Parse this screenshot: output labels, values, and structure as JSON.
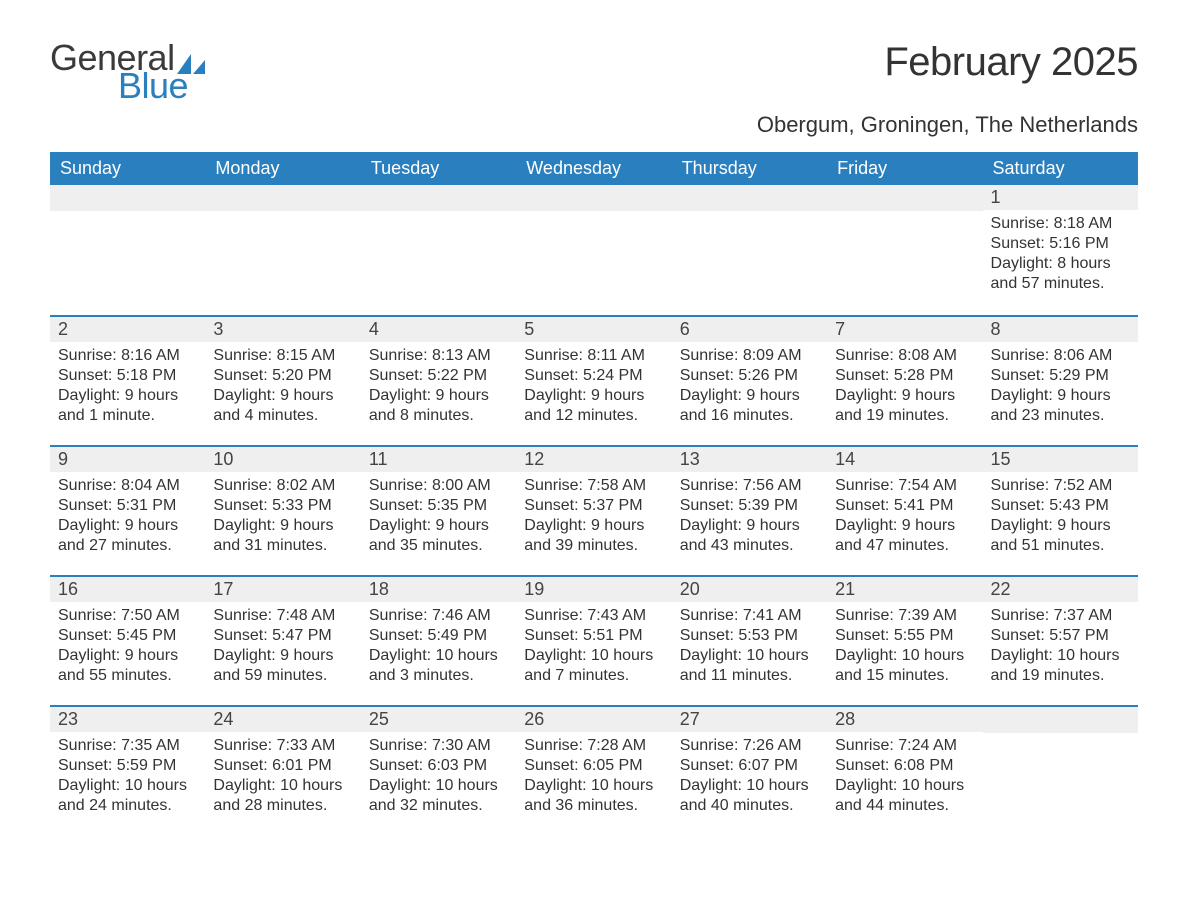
{
  "logo": {
    "word1": "General",
    "word2": "Blue"
  },
  "title": "February 2025",
  "subtitle": "Obergum, Groningen, The Netherlands",
  "colors": {
    "header_bg": "#2a7fbf",
    "header_text": "#ffffff",
    "daynum_bg": "#efefef",
    "body_text": "#333333",
    "logo_gray": "#3a3a3a",
    "logo_blue": "#2a7fbf",
    "page_bg": "#ffffff",
    "week_border": "#2a7fbf"
  },
  "typography": {
    "title_fontsize": 40,
    "subtitle_fontsize": 22,
    "dow_fontsize": 18,
    "daynum_fontsize": 18,
    "body_fontsize": 16,
    "logo_fontsize": 36
  },
  "dow": [
    "Sunday",
    "Monday",
    "Tuesday",
    "Wednesday",
    "Thursday",
    "Friday",
    "Saturday"
  ],
  "weeks": [
    [
      {
        "day": null
      },
      {
        "day": null
      },
      {
        "day": null
      },
      {
        "day": null
      },
      {
        "day": null
      },
      {
        "day": null
      },
      {
        "day": 1,
        "sunrise": "Sunrise: 8:18 AM",
        "sunset": "Sunset: 5:16 PM",
        "daylight1": "Daylight: 8 hours",
        "daylight2": "and 57 minutes."
      }
    ],
    [
      {
        "day": 2,
        "sunrise": "Sunrise: 8:16 AM",
        "sunset": "Sunset: 5:18 PM",
        "daylight1": "Daylight: 9 hours",
        "daylight2": "and 1 minute."
      },
      {
        "day": 3,
        "sunrise": "Sunrise: 8:15 AM",
        "sunset": "Sunset: 5:20 PM",
        "daylight1": "Daylight: 9 hours",
        "daylight2": "and 4 minutes."
      },
      {
        "day": 4,
        "sunrise": "Sunrise: 8:13 AM",
        "sunset": "Sunset: 5:22 PM",
        "daylight1": "Daylight: 9 hours",
        "daylight2": "and 8 minutes."
      },
      {
        "day": 5,
        "sunrise": "Sunrise: 8:11 AM",
        "sunset": "Sunset: 5:24 PM",
        "daylight1": "Daylight: 9 hours",
        "daylight2": "and 12 minutes."
      },
      {
        "day": 6,
        "sunrise": "Sunrise: 8:09 AM",
        "sunset": "Sunset: 5:26 PM",
        "daylight1": "Daylight: 9 hours",
        "daylight2": "and 16 minutes."
      },
      {
        "day": 7,
        "sunrise": "Sunrise: 8:08 AM",
        "sunset": "Sunset: 5:28 PM",
        "daylight1": "Daylight: 9 hours",
        "daylight2": "and 19 minutes."
      },
      {
        "day": 8,
        "sunrise": "Sunrise: 8:06 AM",
        "sunset": "Sunset: 5:29 PM",
        "daylight1": "Daylight: 9 hours",
        "daylight2": "and 23 minutes."
      }
    ],
    [
      {
        "day": 9,
        "sunrise": "Sunrise: 8:04 AM",
        "sunset": "Sunset: 5:31 PM",
        "daylight1": "Daylight: 9 hours",
        "daylight2": "and 27 minutes."
      },
      {
        "day": 10,
        "sunrise": "Sunrise: 8:02 AM",
        "sunset": "Sunset: 5:33 PM",
        "daylight1": "Daylight: 9 hours",
        "daylight2": "and 31 minutes."
      },
      {
        "day": 11,
        "sunrise": "Sunrise: 8:00 AM",
        "sunset": "Sunset: 5:35 PM",
        "daylight1": "Daylight: 9 hours",
        "daylight2": "and 35 minutes."
      },
      {
        "day": 12,
        "sunrise": "Sunrise: 7:58 AM",
        "sunset": "Sunset: 5:37 PM",
        "daylight1": "Daylight: 9 hours",
        "daylight2": "and 39 minutes."
      },
      {
        "day": 13,
        "sunrise": "Sunrise: 7:56 AM",
        "sunset": "Sunset: 5:39 PM",
        "daylight1": "Daylight: 9 hours",
        "daylight2": "and 43 minutes."
      },
      {
        "day": 14,
        "sunrise": "Sunrise: 7:54 AM",
        "sunset": "Sunset: 5:41 PM",
        "daylight1": "Daylight: 9 hours",
        "daylight2": "and 47 minutes."
      },
      {
        "day": 15,
        "sunrise": "Sunrise: 7:52 AM",
        "sunset": "Sunset: 5:43 PM",
        "daylight1": "Daylight: 9 hours",
        "daylight2": "and 51 minutes."
      }
    ],
    [
      {
        "day": 16,
        "sunrise": "Sunrise: 7:50 AM",
        "sunset": "Sunset: 5:45 PM",
        "daylight1": "Daylight: 9 hours",
        "daylight2": "and 55 minutes."
      },
      {
        "day": 17,
        "sunrise": "Sunrise: 7:48 AM",
        "sunset": "Sunset: 5:47 PM",
        "daylight1": "Daylight: 9 hours",
        "daylight2": "and 59 minutes."
      },
      {
        "day": 18,
        "sunrise": "Sunrise: 7:46 AM",
        "sunset": "Sunset: 5:49 PM",
        "daylight1": "Daylight: 10 hours",
        "daylight2": "and 3 minutes."
      },
      {
        "day": 19,
        "sunrise": "Sunrise: 7:43 AM",
        "sunset": "Sunset: 5:51 PM",
        "daylight1": "Daylight: 10 hours",
        "daylight2": "and 7 minutes."
      },
      {
        "day": 20,
        "sunrise": "Sunrise: 7:41 AM",
        "sunset": "Sunset: 5:53 PM",
        "daylight1": "Daylight: 10 hours",
        "daylight2": "and 11 minutes."
      },
      {
        "day": 21,
        "sunrise": "Sunrise: 7:39 AM",
        "sunset": "Sunset: 5:55 PM",
        "daylight1": "Daylight: 10 hours",
        "daylight2": "and 15 minutes."
      },
      {
        "day": 22,
        "sunrise": "Sunrise: 7:37 AM",
        "sunset": "Sunset: 5:57 PM",
        "daylight1": "Daylight: 10 hours",
        "daylight2": "and 19 minutes."
      }
    ],
    [
      {
        "day": 23,
        "sunrise": "Sunrise: 7:35 AM",
        "sunset": "Sunset: 5:59 PM",
        "daylight1": "Daylight: 10 hours",
        "daylight2": "and 24 minutes."
      },
      {
        "day": 24,
        "sunrise": "Sunrise: 7:33 AM",
        "sunset": "Sunset: 6:01 PM",
        "daylight1": "Daylight: 10 hours",
        "daylight2": "and 28 minutes."
      },
      {
        "day": 25,
        "sunrise": "Sunrise: 7:30 AM",
        "sunset": "Sunset: 6:03 PM",
        "daylight1": "Daylight: 10 hours",
        "daylight2": "and 32 minutes."
      },
      {
        "day": 26,
        "sunrise": "Sunrise: 7:28 AM",
        "sunset": "Sunset: 6:05 PM",
        "daylight1": "Daylight: 10 hours",
        "daylight2": "and 36 minutes."
      },
      {
        "day": 27,
        "sunrise": "Sunrise: 7:26 AM",
        "sunset": "Sunset: 6:07 PM",
        "daylight1": "Daylight: 10 hours",
        "daylight2": "and 40 minutes."
      },
      {
        "day": 28,
        "sunrise": "Sunrise: 7:24 AM",
        "sunset": "Sunset: 6:08 PM",
        "daylight1": "Daylight: 10 hours",
        "daylight2": "and 44 minutes."
      },
      {
        "day": null
      }
    ]
  ]
}
